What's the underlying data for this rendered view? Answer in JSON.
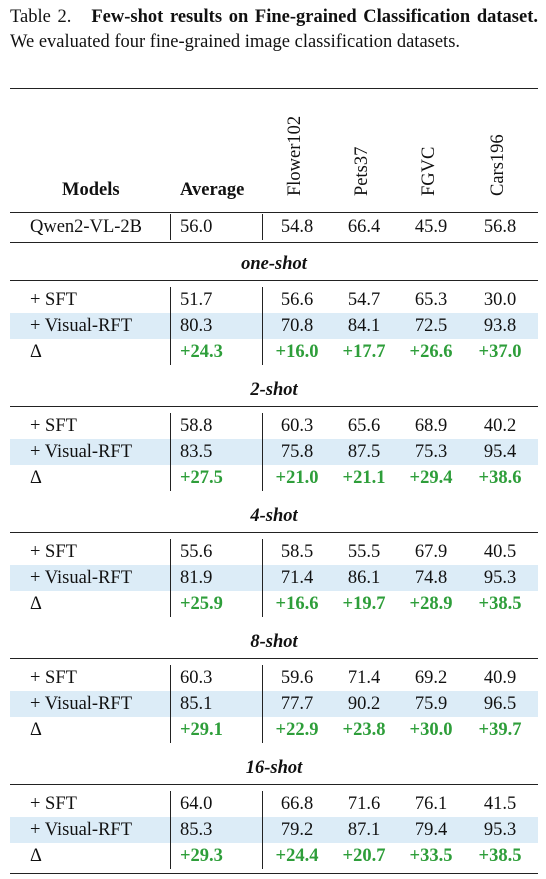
{
  "caption": {
    "label": "Table 2.",
    "title": "Few-shot results on Fine-grained Classification dataset.",
    "text": "We evaluated four fine-grained image classification datasets."
  },
  "table": {
    "headers": [
      "Models",
      "Average",
      "Flower102",
      "Pets37",
      "FGVC",
      "Cars196"
    ],
    "baseline": [
      "Qwen2-VL-2B",
      "56.0",
      "54.8",
      "66.4",
      "45.9",
      "56.8"
    ],
    "sections": [
      {
        "title": "one-shot",
        "rows": [
          [
            "+ SFT",
            "51.7",
            "56.6",
            "54.7",
            "65.3",
            "30.0"
          ],
          [
            "+ Visual-RFT",
            "80.3",
            "70.8",
            "84.1",
            "72.5",
            "93.8"
          ],
          [
            "Δ",
            "+24.3",
            "+16.0",
            "+17.7",
            "+26.6",
            "+37.0"
          ]
        ]
      },
      {
        "title": "2-shot",
        "rows": [
          [
            "+ SFT",
            "58.8",
            "60.3",
            "65.6",
            "68.9",
            "40.2"
          ],
          [
            "+ Visual-RFT",
            "83.5",
            "75.8",
            "87.5",
            "75.3",
            "95.4"
          ],
          [
            "Δ",
            "+27.5",
            "+21.0",
            "+21.1",
            "+29.4",
            "+38.6"
          ]
        ]
      },
      {
        "title": "4-shot",
        "rows": [
          [
            "+ SFT",
            "55.6",
            "58.5",
            "55.5",
            "67.9",
            "40.5"
          ],
          [
            "+ Visual-RFT",
            "81.9",
            "71.4",
            "86.1",
            "74.8",
            "95.3"
          ],
          [
            "Δ",
            "+25.9",
            "+16.6",
            "+19.7",
            "+28.9",
            "+38.5"
          ]
        ]
      },
      {
        "title": "8-shot",
        "rows": [
          [
            "+ SFT",
            "60.3",
            "59.6",
            "71.4",
            "69.2",
            "40.9"
          ],
          [
            "+ Visual-RFT",
            "85.1",
            "77.7",
            "90.2",
            "75.9",
            "96.5"
          ],
          [
            "Δ",
            "+29.1",
            "+22.9",
            "+23.8",
            "+30.0",
            "+39.7"
          ]
        ]
      },
      {
        "title": "16-shot",
        "rows": [
          [
            "+ SFT",
            "64.0",
            "66.8",
            "71.6",
            "76.1",
            "41.5"
          ],
          [
            "+ Visual-RFT",
            "85.3",
            "79.2",
            "87.1",
            "79.4",
            "95.3"
          ],
          [
            "Δ",
            "+29.3",
            "+24.4",
            "+20.7",
            "+33.5",
            "+38.5"
          ]
        ]
      }
    ]
  }
}
